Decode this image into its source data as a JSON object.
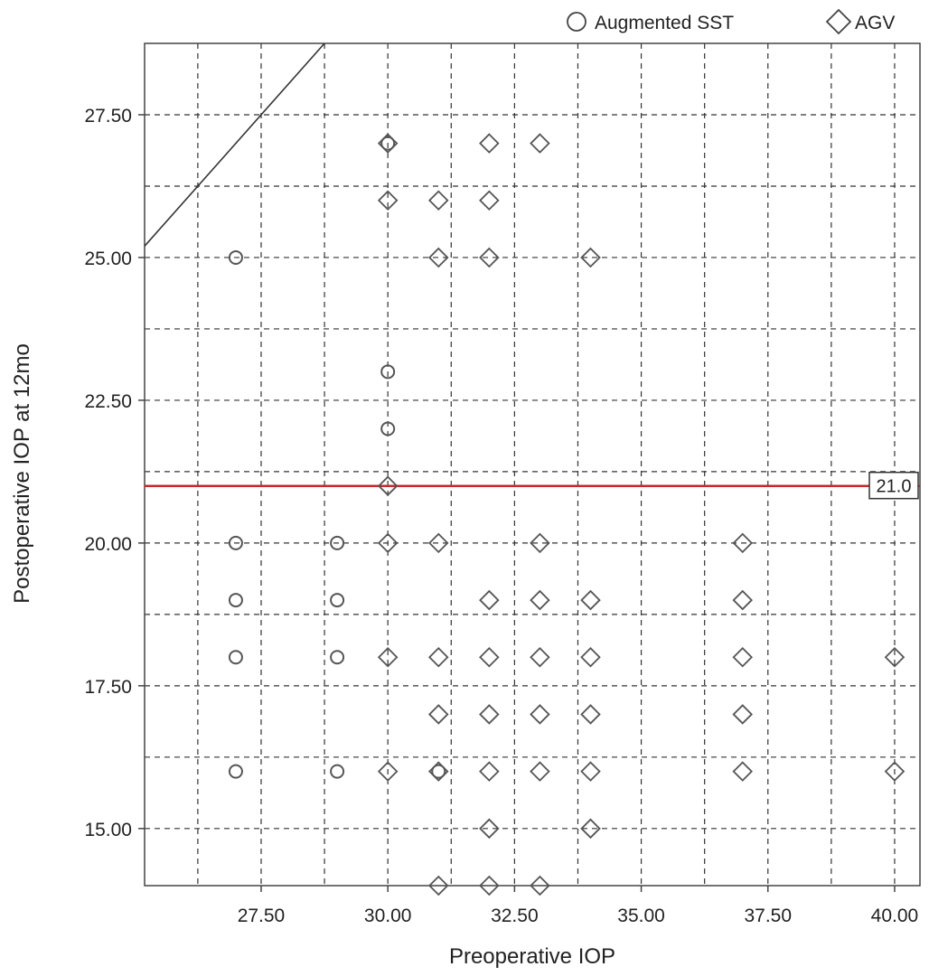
{
  "chart_data": {
    "type": "scatter",
    "xlabel": "Preoperative IOP",
    "ylabel": "Postoperative IOP at 12mo",
    "xlim": [
      25.2,
      40.5
    ],
    "ylim": [
      14.0,
      28.75
    ],
    "x_ticks": [
      "27.50",
      "30.00",
      "32.50",
      "35.00",
      "37.50",
      "40.00"
    ],
    "y_ticks": [
      "15.00",
      "17.50",
      "20.00",
      "22.50",
      "25.00",
      "27.50"
    ],
    "x_tick_values": [
      27.5,
      30.0,
      32.5,
      35.0,
      37.5,
      40.0
    ],
    "y_tick_values": [
      15.0,
      17.5,
      20.0,
      22.5,
      25.0,
      27.5
    ],
    "grid": true,
    "legend_position": "top-right",
    "reference_line": {
      "y": 21.0,
      "label": "21.0",
      "color": "#c8282a"
    },
    "identity_line": true,
    "series": [
      {
        "name": "Augmented SST",
        "marker": "circle",
        "points": [
          [
            27,
            25
          ],
          [
            27,
            20
          ],
          [
            27,
            19
          ],
          [
            27,
            18
          ],
          [
            27,
            16
          ],
          [
            29,
            20
          ],
          [
            29,
            19
          ],
          [
            29,
            18
          ],
          [
            29,
            16
          ],
          [
            30,
            27
          ],
          [
            30,
            23
          ],
          [
            30,
            22
          ],
          [
            31,
            16
          ]
        ]
      },
      {
        "name": "AGV",
        "marker": "diamond",
        "points": [
          [
            30,
            27
          ],
          [
            30,
            26
          ],
          [
            30,
            21
          ],
          [
            30,
            20
          ],
          [
            30,
            18
          ],
          [
            30,
            16
          ],
          [
            31,
            26
          ],
          [
            31,
            25
          ],
          [
            31,
            20
          ],
          [
            31,
            18
          ],
          [
            31,
            17
          ],
          [
            31,
            16
          ],
          [
            31,
            14
          ],
          [
            32,
            27
          ],
          [
            32,
            26
          ],
          [
            32,
            25
          ],
          [
            32,
            19
          ],
          [
            32,
            18
          ],
          [
            32,
            17
          ],
          [
            32,
            16
          ],
          [
            32,
            15
          ],
          [
            32,
            14
          ],
          [
            33,
            27
          ],
          [
            33,
            20
          ],
          [
            33,
            19
          ],
          [
            33,
            18
          ],
          [
            33,
            17
          ],
          [
            33,
            16
          ],
          [
            33,
            14
          ],
          [
            34,
            25
          ],
          [
            34,
            19
          ],
          [
            34,
            18
          ],
          [
            34,
            17
          ],
          [
            34,
            16
          ],
          [
            34,
            15
          ],
          [
            37,
            20
          ],
          [
            37,
            19
          ],
          [
            37,
            18
          ],
          [
            37,
            17
          ],
          [
            37,
            16
          ],
          [
            40,
            18
          ],
          [
            40,
            16
          ]
        ]
      }
    ]
  }
}
